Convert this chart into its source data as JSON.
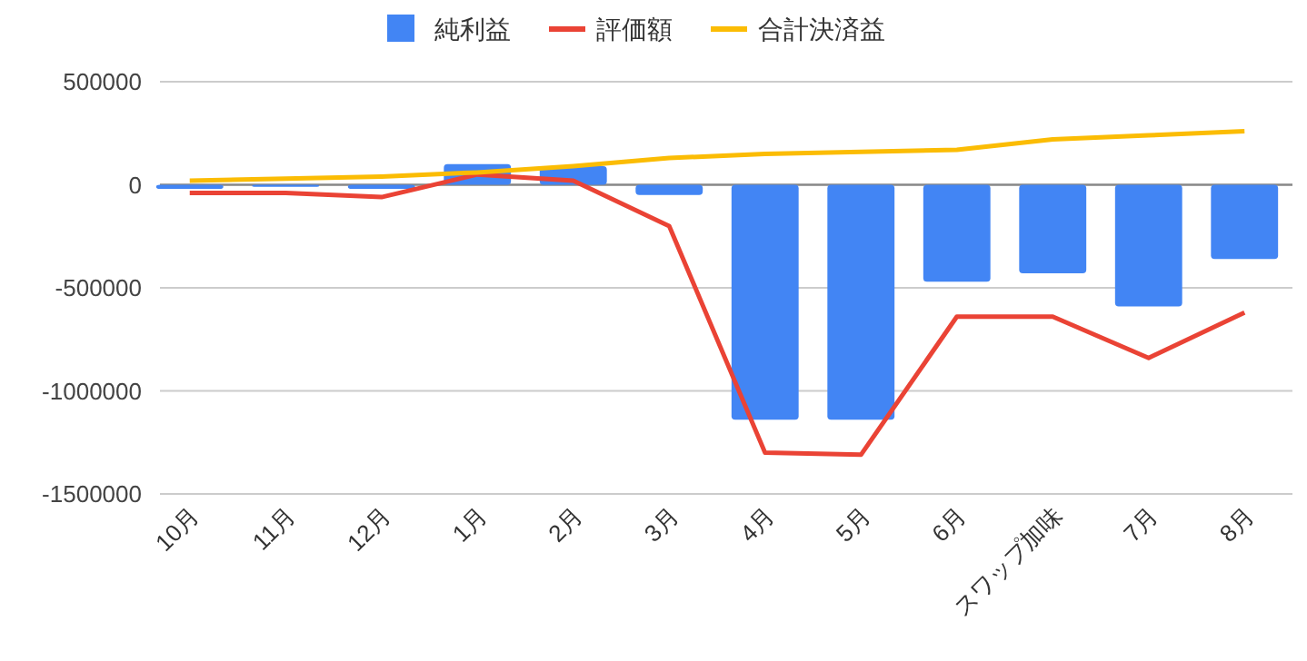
{
  "chart_data": {
    "type": "bar",
    "categories": [
      "10月",
      "11月",
      "12月",
      "1月",
      "2月",
      "3月",
      "4月",
      "5月",
      "6月",
      "スワップ加味",
      "7月",
      "8月"
    ],
    "series": [
      {
        "name": "純利益",
        "color": "#4285f4",
        "values": [
          -20000,
          -10000,
          -20000,
          100000,
          90000,
          -50000,
          -1140000,
          -1140000,
          -470000,
          -430000,
          -590000,
          -360000
        ]
      },
      {
        "name": "評価額",
        "type": "line",
        "color": "#ea4335",
        "values": [
          -40000,
          -40000,
          -60000,
          50000,
          20000,
          -200000,
          -1300000,
          -1310000,
          -640000,
          -640000,
          -840000,
          -620000
        ]
      },
      {
        "name": "合計決済益",
        "type": "line",
        "color": "#fbbc04",
        "values": [
          20000,
          30000,
          40000,
          60000,
          90000,
          130000,
          150000,
          160000,
          170000,
          220000,
          240000,
          260000
        ]
      }
    ],
    "ylim": [
      -1500000,
      500000
    ],
    "yticks": [
      -1500000,
      -1000000,
      -500000,
      0,
      500000
    ],
    "grid": "y",
    "legend": "top"
  }
}
